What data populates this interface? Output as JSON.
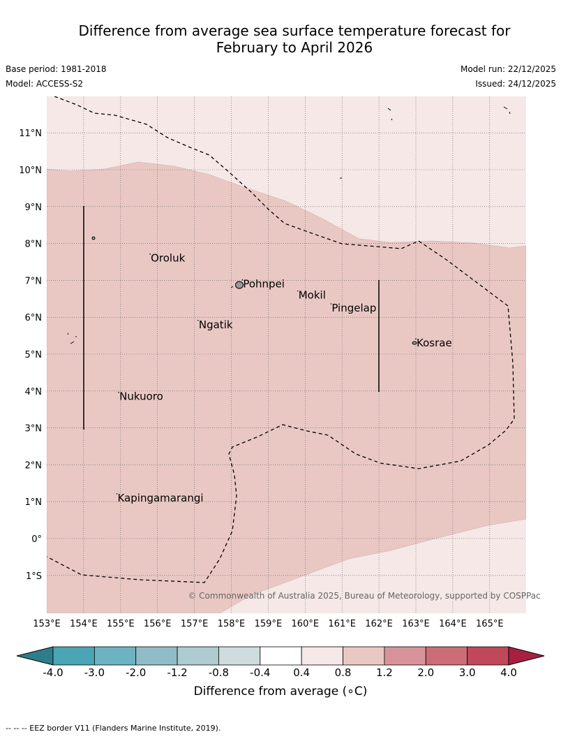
{
  "title_line1": "Difference from average sea surface temperature forecast for",
  "title_line2": "February to April 2026",
  "base_period": "Base period: 1981-2018",
  "model": "Model: ACCESS-S2",
  "model_run": "Model run: 22/12/2025",
  "issued": "Issued: 24/12/2025",
  "copyright": "© Commonwealth of Australia 2025, Bureau of Meteorology, supported by COSPPac",
  "footnote": "--  --  -- EEZ border V11 (Flanders Marine Institute, 2019).",
  "colorbar": {
    "title": "Difference from average (∘C)",
    "ticks": [
      "-4.0",
      "-3.0",
      "-2.0",
      "-1.2",
      "-0.8",
      "-0.4",
      "0.4",
      "0.8",
      "1.2",
      "2.0",
      "3.0",
      "4.0"
    ],
    "colors": [
      "#2d7e8c",
      "#4aa5b5",
      "#6db4c3",
      "#8fbcc7",
      "#aecbcf",
      "#cfdcdd",
      "#ffffff",
      "#f5e8e7",
      "#e9c8c4",
      "#d8939a",
      "#cc6c77",
      "#c0485a",
      "#a82040"
    ]
  },
  "map": {
    "lon_labels": [
      "153°E",
      "154°E",
      "155°E",
      "156°E",
      "157°E",
      "158°E",
      "159°E",
      "160°E",
      "161°E",
      "162°E",
      "163°E",
      "164°E",
      "165°E"
    ],
    "lat_labels": [
      "11°N",
      "10°N",
      "9°N",
      "8°N",
      "7°N",
      "6°N",
      "5°N",
      "4°N",
      "3°N",
      "2°N",
      "1°N",
      "0°",
      "1°S"
    ],
    "fill_colors": {
      "light": "#f5e8e7",
      "mid": "#e9c8c4"
    },
    "places": [
      {
        "name": "Oroluk",
        "lon": 155.8,
        "lat": 7.6
      },
      {
        "name": "Pohnpei",
        "lon": 158.3,
        "lat": 6.9
      },
      {
        "name": "Mokil",
        "lon": 159.8,
        "lat": 6.6
      },
      {
        "name": "Pingelap",
        "lon": 160.7,
        "lat": 6.25
      },
      {
        "name": "Ngatik",
        "lon": 157.1,
        "lat": 5.8
      },
      {
        "name": "Kosrae",
        "lon": 163.0,
        "lat": 5.3
      },
      {
        "name": "Nukuoro",
        "lon": 154.95,
        "lat": 3.85
      },
      {
        "name": "Kapingamarangi",
        "lon": 154.9,
        "lat": 1.1
      }
    ]
  }
}
